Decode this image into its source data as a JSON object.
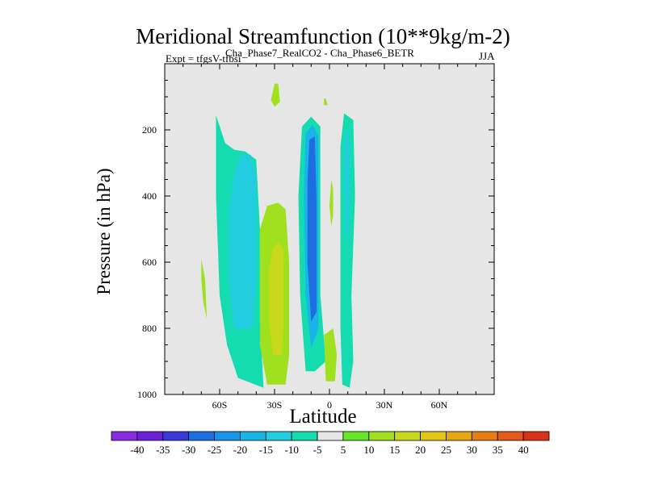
{
  "chart_data": {
    "type": "heatmap",
    "title": "Meridional Streamfunction (10**9kg/m-2)",
    "subtitle": "Cha_Phase7_RealCO2 - Cha_Phase6_BETR",
    "experiment_label": "Expt = tfgsV-tfbsi",
    "season": "JJA",
    "xlabel": "Latitude",
    "ylabel": "Pressure (in hPa)",
    "x_range": [
      -90,
      90
    ],
    "y_range": [
      1000,
      0
    ],
    "x_ticks": [
      {
        "value": -60,
        "label": "60S"
      },
      {
        "value": -30,
        "label": "30S"
      },
      {
        "value": 0,
        "label": "0"
      },
      {
        "value": 30,
        "label": "30N"
      },
      {
        "value": 60,
        "label": "60N"
      }
    ],
    "y_ticks": [
      {
        "value": 200,
        "label": "200"
      },
      {
        "value": 400,
        "label": "400"
      },
      {
        "value": 600,
        "label": "600"
      },
      {
        "value": 800,
        "label": "800"
      },
      {
        "value": 1000,
        "label": "1000"
      }
    ],
    "colorbar": {
      "levels": [
        "-40",
        "-35",
        "-30",
        "-25",
        "-20",
        "-15",
        "-10",
        "-5",
        "5",
        "10",
        "15",
        "20",
        "25",
        "30",
        "35",
        "40"
      ],
      "colors": [
        "#8a2be2",
        "#6a20d6",
        "#3a3ad8",
        "#1e6ee0",
        "#1a94e6",
        "#1ab4e8",
        "#22cde0",
        "#14dcb0",
        "#e6e6e6",
        "#66e62a",
        "#9fe01f",
        "#c8d81a",
        "#e0c814",
        "#e6a812",
        "#e67e14",
        "#e4581a",
        "#d83218"
      ]
    },
    "contour_regions": [
      {
        "name": "band-60S-outer",
        "level": -10,
        "points": [
          [
            -62,
            155
          ],
          [
            -57,
            240
          ],
          [
            -52,
            260
          ],
          [
            -46,
            265
          ],
          [
            -40,
            290
          ],
          [
            -38,
            500
          ],
          [
            -38,
            780
          ],
          [
            -36,
            980
          ],
          [
            -50,
            950
          ],
          [
            -56,
            850
          ],
          [
            -60,
            700
          ],
          [
            -62,
            400
          ]
        ]
      },
      {
        "name": "band-60S-inner",
        "level": -15,
        "points": [
          [
            -52,
            330
          ],
          [
            -48,
            275
          ],
          [
            -43,
            275
          ],
          [
            -40,
            340
          ],
          [
            -40,
            650
          ],
          [
            -42,
            800
          ],
          [
            -52,
            800
          ],
          [
            -55,
            650
          ],
          [
            -55,
            450
          ]
        ]
      },
      {
        "name": "band-30S-outer",
        "level": 10,
        "points": [
          [
            -34,
            430
          ],
          [
            -28,
            420
          ],
          [
            -24,
            440
          ],
          [
            -22,
            600
          ],
          [
            -22,
            880
          ],
          [
            -24,
            970
          ],
          [
            -34,
            970
          ],
          [
            -38,
            850
          ],
          [
            -38,
            500
          ]
        ]
      },
      {
        "name": "band-30S-inner",
        "level": 15,
        "points": [
          [
            -31,
            560
          ],
          [
            -28,
            540
          ],
          [
            -25,
            560
          ],
          [
            -25,
            780
          ],
          [
            -26,
            880
          ],
          [
            -31,
            880
          ],
          [
            -33,
            780
          ],
          [
            -33,
            620
          ]
        ]
      },
      {
        "name": "spot-upper",
        "level": 10,
        "points": [
          [
            -30,
            60
          ],
          [
            -28,
            60
          ],
          [
            -27,
            115
          ],
          [
            -30,
            130
          ],
          [
            -32,
            110
          ]
        ]
      },
      {
        "name": "spot-left-thin",
        "level": 10,
        "points": [
          [
            -70,
            590
          ],
          [
            -68,
            650
          ],
          [
            -67,
            770
          ],
          [
            -69,
            720
          ],
          [
            -70,
            650
          ]
        ]
      },
      {
        "name": "band-eq-outer",
        "level": -10,
        "points": [
          [
            -15,
            190
          ],
          [
            -10,
            160
          ],
          [
            -5,
            190
          ],
          [
            -5,
            700
          ],
          [
            -2,
            900
          ],
          [
            -8,
            930
          ],
          [
            -13,
            930
          ],
          [
            -16,
            700
          ],
          [
            -17,
            400
          ]
        ]
      },
      {
        "name": "band-eq-mid",
        "level": -20,
        "points": [
          [
            -13,
            210
          ],
          [
            -9,
            185
          ],
          [
            -6,
            220
          ],
          [
            -6,
            800
          ],
          [
            -10,
            860
          ],
          [
            -13,
            700
          ],
          [
            -14,
            400
          ]
        ]
      },
      {
        "name": "band-eq-core",
        "level": -30,
        "points": [
          [
            -11,
            230
          ],
          [
            -8,
            220
          ],
          [
            -7,
            420
          ],
          [
            -7,
            750
          ],
          [
            -10,
            780
          ],
          [
            -12,
            600
          ],
          [
            -12,
            350
          ]
        ]
      },
      {
        "name": "spot-eq-lower",
        "level": 10,
        "points": [
          [
            -3,
            820
          ],
          [
            2,
            800
          ],
          [
            4,
            880
          ],
          [
            3,
            960
          ],
          [
            -2,
            960
          ]
        ]
      },
      {
        "name": "spot-eq-small",
        "level": 10,
        "points": [
          [
            1,
            350
          ],
          [
            2,
            380
          ],
          [
            2,
            460
          ],
          [
            1,
            490
          ],
          [
            0,
            430
          ]
        ]
      },
      {
        "name": "spot-eq-top",
        "level": 10,
        "points": [
          [
            -3,
            105
          ],
          [
            -2,
            105
          ],
          [
            -1,
            125
          ],
          [
            -3,
            125
          ]
        ]
      },
      {
        "name": "band-10N-outer",
        "level": -10,
        "points": [
          [
            8,
            150
          ],
          [
            13,
            170
          ],
          [
            14,
            400
          ],
          [
            12,
            700
          ],
          [
            13,
            900
          ],
          [
            11,
            980
          ],
          [
            7,
            970
          ],
          [
            6,
            800
          ],
          [
            6,
            500
          ],
          [
            6,
            250
          ]
        ]
      },
      {
        "name": "band-10N-inner",
        "level": -15,
        "points": [
          [
            9,
            200
          ],
          [
            11,
            220
          ],
          [
            11,
            400
          ],
          [
            10,
            550
          ],
          [
            9,
            500
          ],
          [
            8,
            300
          ]
        ]
      }
    ]
  }
}
